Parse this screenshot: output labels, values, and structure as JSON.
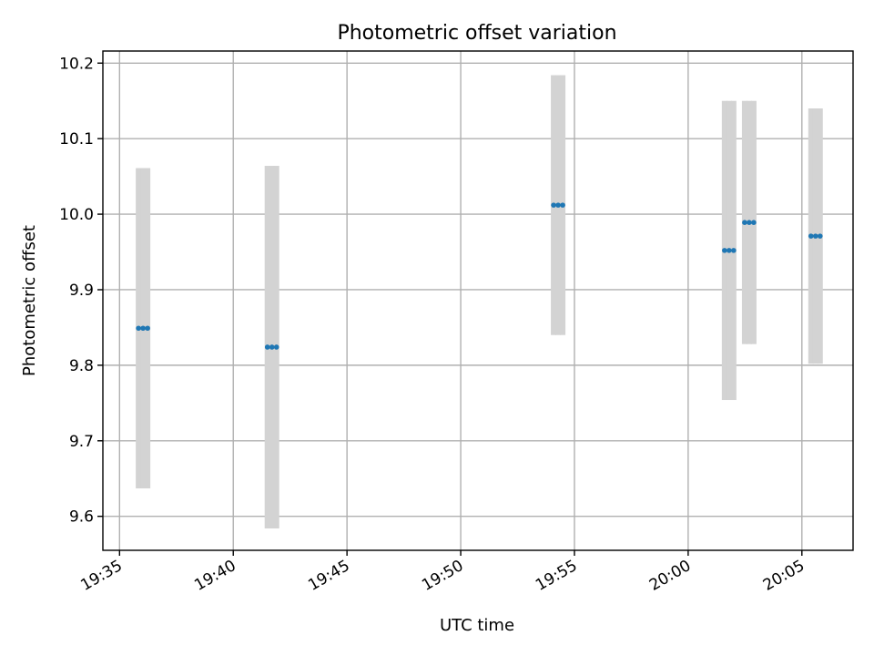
{
  "chart_data": {
    "type": "scatter",
    "title": "Photometric offset variation",
    "xlabel": "UTC time",
    "ylabel": "Photometric offset",
    "x_tick_labels": [
      "19:35",
      "19:40",
      "19:45",
      "19:50",
      "19:55",
      "20:00",
      "20:05"
    ],
    "y_ticks": [
      9.6,
      9.7,
      9.8,
      9.9,
      10.0,
      10.1,
      10.2
    ],
    "y_tick_labels": [
      "9.6",
      "9.7",
      "9.8",
      "9.9",
      "10.0",
      "10.1",
      "10.2"
    ],
    "xlim": [
      "19:34:16",
      "20:07:15"
    ],
    "ylim": [
      9.555,
      10.216
    ],
    "grid": true,
    "colors": {
      "points": "#1f77b4",
      "errorbars": "#d3d3d3"
    },
    "groups": [
      {
        "times": [
          "19:35:50",
          "19:36:02",
          "19:36:14"
        ],
        "value": 9.849,
        "error": 0.212
      },
      {
        "times": [
          "19:41:30",
          "19:41:42",
          "19:41:54"
        ],
        "value": 9.824,
        "error": 0.24
      },
      {
        "times": [
          "19:54:05",
          "19:54:17",
          "19:54:29"
        ],
        "value": 10.012,
        "error": 0.172
      },
      {
        "times": [
          "20:01:36",
          "20:01:48",
          "20:02:00"
        ],
        "value": 9.952,
        "error": 0.198
      },
      {
        "times": [
          "20:02:29",
          "20:02:41",
          "20:02:53"
        ],
        "value": 9.989,
        "error": 0.161
      },
      {
        "times": [
          "20:05:24",
          "20:05:36",
          "20:05:48"
        ],
        "value": 9.971,
        "error": 0.169
      }
    ]
  }
}
